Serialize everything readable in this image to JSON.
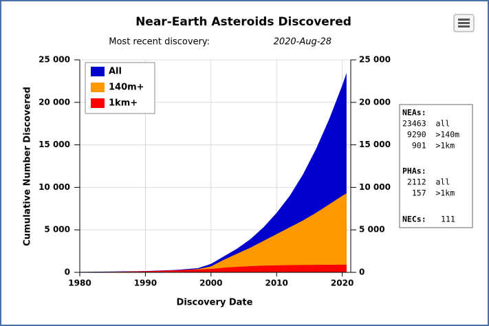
{
  "chart_data": {
    "type": "area",
    "title": "Near-Earth Asteroids Discovered",
    "subtitle": "Most recent discovery:",
    "subtitle_date": "2020-Aug-28",
    "x_label": "Discovery Date",
    "y_label": "Cumulative Number Discovered",
    "x": [
      1980,
      1985,
      1990,
      1995,
      1998,
      2000,
      2002,
      2004,
      2006,
      2008,
      2010,
      2012,
      2014,
      2016,
      2018,
      2020,
      2020.66
    ],
    "series": [
      {
        "name": "All",
        "color": "#0000cc",
        "values": [
          50,
          100,
          150,
          300,
          500,
          1000,
          1900,
          2800,
          3900,
          5300,
          7000,
          9000,
          11500,
          14500,
          18000,
          22000,
          23463
        ]
      },
      {
        "name": "140m+",
        "color": "#ff9900",
        "values": [
          30,
          60,
          110,
          230,
          380,
          700,
          1500,
          2200,
          2900,
          3700,
          4500,
          5300,
          6100,
          7000,
          8000,
          9000,
          9290
        ]
      },
      {
        "name": "1km+",
        "color": "#ff0000",
        "values": [
          20,
          50,
          130,
          250,
          330,
          400,
          550,
          650,
          730,
          790,
          820,
          850,
          870,
          880,
          890,
          898,
          901
        ]
      }
    ],
    "xlim": [
      1980,
      2021.3
    ],
    "xticks": [
      1980,
      1990,
      2000,
      2010,
      2020
    ],
    "ylim": [
      0,
      25000
    ],
    "yticks": [
      0,
      {
        "value": 5000,
        "label": "5 000"
      },
      {
        "value": 10000,
        "label": "10 000"
      },
      {
        "value": 15000,
        "label": "15 000"
      },
      {
        "value": 20000,
        "label": "20 000"
      },
      {
        "value": 25000,
        "label": "25 000"
      }
    ],
    "y2lim": [
      0,
      25000
    ],
    "y2ticks": [
      0,
      {
        "value": 5000,
        "label": "5 000"
      },
      {
        "value": 10000,
        "label": "10 000"
      },
      {
        "value": 15000,
        "label": "15 000"
      },
      {
        "value": 20000,
        "label": "20 000"
      },
      {
        "value": 25000,
        "label": "25 000"
      }
    ],
    "grid": true,
    "legend": "upper left",
    "info_box": {
      "neas": {
        "label": "NEAs:",
        "rows": [
          "23463  all",
          " 9290  >140m",
          "  901  >1km"
        ]
      },
      "phas": {
        "label": "PHAs:",
        "rows": [
          " 2112  all",
          "  157  >1km"
        ]
      },
      "necs": {
        "label": "NECs:",
        "value": "111"
      }
    }
  }
}
